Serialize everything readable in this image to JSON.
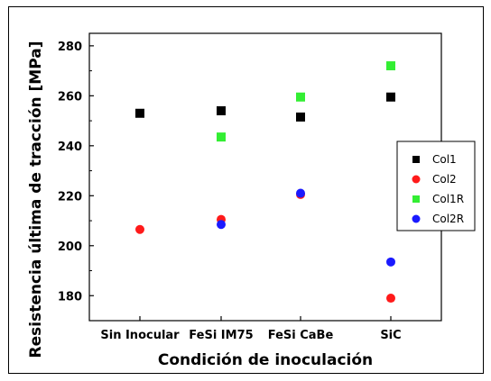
{
  "chart_data": {
    "type": "scatter",
    "categories": [
      "Sin Inocular",
      "FeSi IM75",
      "FeSi CaBe",
      "SiC"
    ],
    "xlabel": "Condición de inoculación",
    "ylabel": "Resistencia última de tracción [MPa]",
    "ylim": [
      170,
      285
    ],
    "yticks": [
      180,
      200,
      220,
      240,
      260,
      280
    ],
    "legend_position": "right",
    "series": [
      {
        "name": "Col1",
        "color": "#000000",
        "marker": "square",
        "values": [
          253,
          254,
          251.5,
          259.5
        ]
      },
      {
        "name": "Col2",
        "color": "#ff1a1a",
        "marker": "circle",
        "values": [
          206.5,
          210.5,
          220.5,
          179
        ]
      },
      {
        "name": "Col1R",
        "color": "#33ee33",
        "marker": "square",
        "values": [
          null,
          243.5,
          259.5,
          272
        ]
      },
      {
        "name": "Col2R",
        "color": "#1a1aff",
        "marker": "circle",
        "values": [
          null,
          208.5,
          221,
          193.5
        ]
      }
    ]
  }
}
